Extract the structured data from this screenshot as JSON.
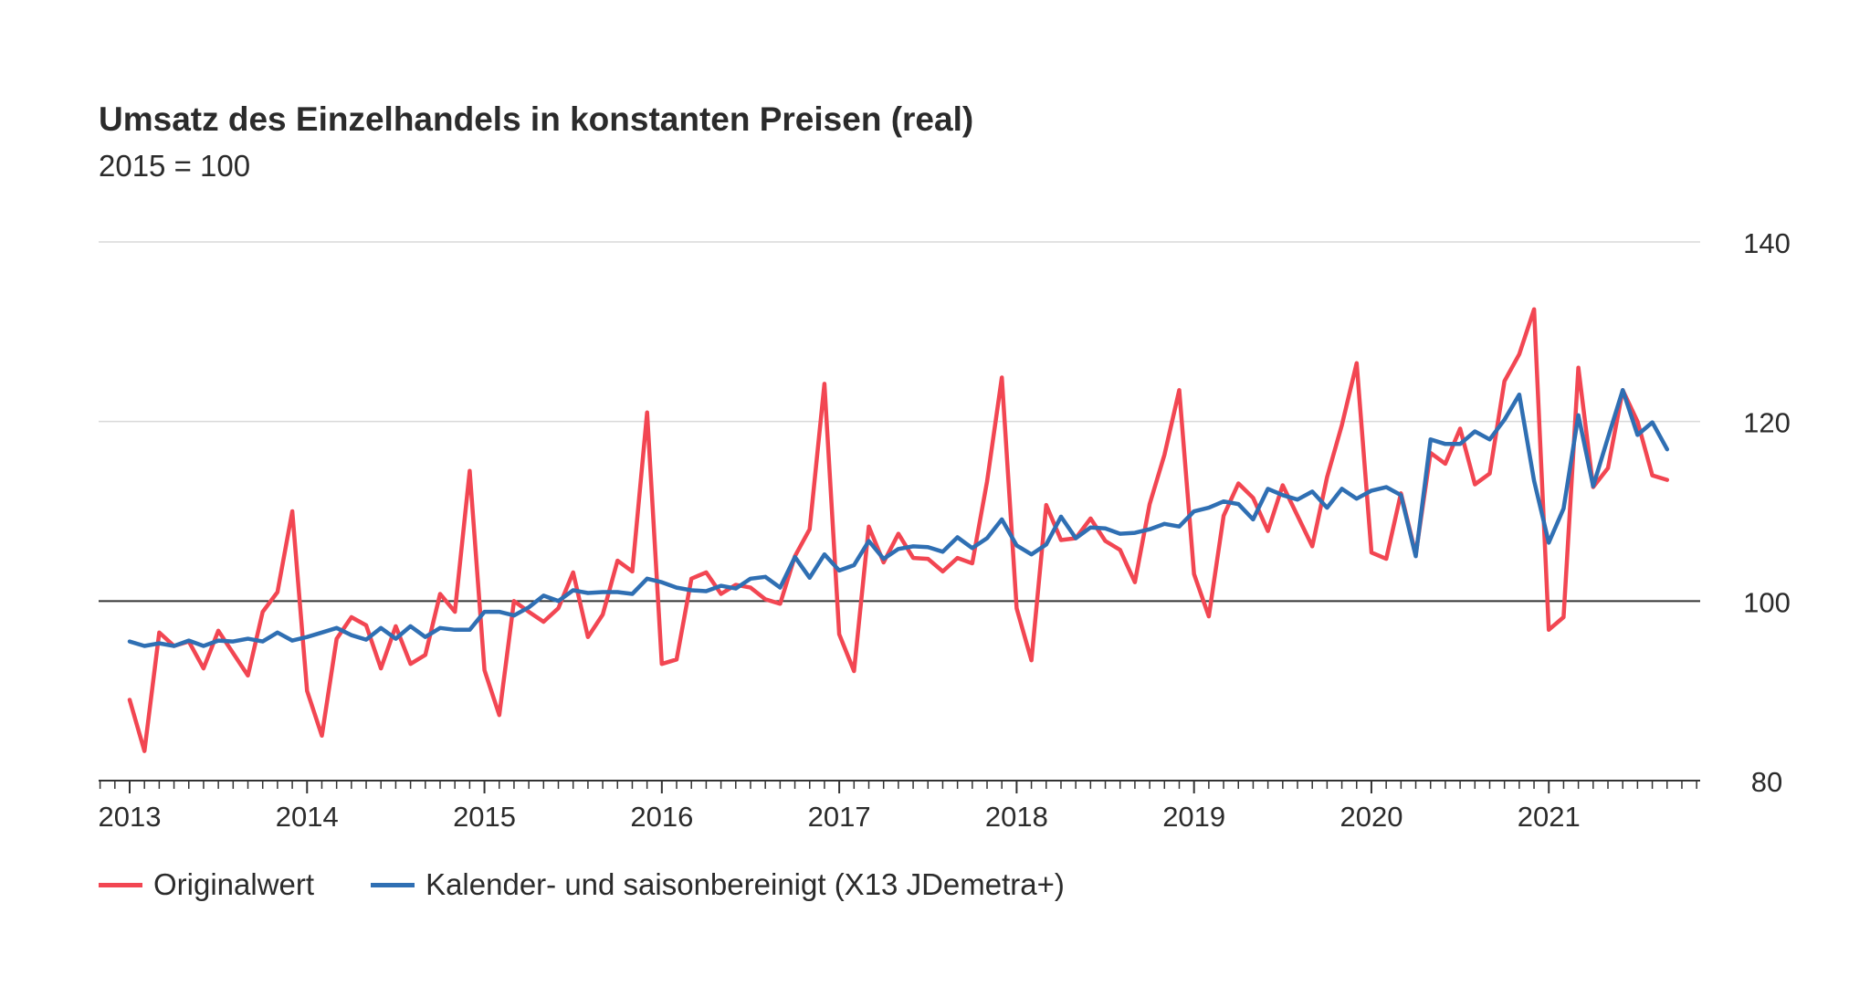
{
  "chart_data": {
    "type": "line",
    "title": "Umsatz des Einzelhandels in konstanten Preisen (real)",
    "subtitle": "2015 = 100",
    "ylim": [
      80,
      140
    ],
    "yticks": [
      "80",
      "100",
      "120",
      "140"
    ],
    "xticks": [
      "2013",
      "2014",
      "2015",
      "2016",
      "2017",
      "2018",
      "2019",
      "2020",
      "2021"
    ],
    "x_start": "2013-01",
    "x_end": "2021-09",
    "reference_line": 100,
    "grid": true,
    "legend_position": "bottom-left",
    "series": [
      {
        "name": "Originalwert",
        "color": "#f24652",
        "values": [
          89.0,
          83.3,
          96.5,
          95.0,
          95.5,
          92.5,
          96.7,
          94.2,
          91.7,
          98.8,
          101.0,
          110.0,
          90.0,
          85.0,
          95.8,
          98.2,
          97.3,
          92.5,
          97.2,
          93.0,
          94.0,
          100.8,
          98.8,
          114.5,
          92.3,
          87.3,
          100.0,
          98.8,
          97.7,
          99.2,
          103.2,
          96.0,
          98.5,
          104.5,
          103.3,
          121.0,
          93.0,
          93.5,
          102.5,
          103.2,
          100.8,
          101.8,
          101.5,
          100.2,
          99.7,
          105.0,
          108.0,
          124.2,
          96.3,
          92.2,
          108.3,
          104.3,
          107.5,
          104.8,
          104.7,
          103.3,
          104.8,
          104.2,
          113.3,
          124.9,
          99.2,
          93.4,
          110.7,
          106.8,
          107.0,
          109.2,
          106.7,
          105.7,
          102.1,
          110.8,
          116.3,
          123.5,
          103.0,
          98.3,
          109.5,
          113.1,
          111.5,
          107.8,
          112.9,
          109.5,
          106.1,
          113.8,
          119.6,
          126.5,
          105.4,
          104.7,
          112.0,
          105.2,
          116.5,
          115.3,
          119.2,
          113.0,
          114.2,
          124.5,
          127.5,
          132.5,
          96.8,
          98.2,
          126.0,
          112.7,
          114.8,
          123.5,
          120.0,
          114.0,
          113.5
        ]
      },
      {
        "name": "Kalender- und saisonbereinigt (X13 JDemetra+)",
        "color": "#2f6fb3",
        "values": [
          95.5,
          95.0,
          95.3,
          95.0,
          95.6,
          95.0,
          95.6,
          95.5,
          95.8,
          95.5,
          96.5,
          95.6,
          96.0,
          96.5,
          97.0,
          96.2,
          95.7,
          97.0,
          95.8,
          97.2,
          96.0,
          97.0,
          96.8,
          96.8,
          98.8,
          98.8,
          98.4,
          99.3,
          100.6,
          100.0,
          101.2,
          100.9,
          101.0,
          101.0,
          100.8,
          102.5,
          102.1,
          101.5,
          101.2,
          101.1,
          101.7,
          101.4,
          102.5,
          102.7,
          101.5,
          104.9,
          102.6,
          105.2,
          103.4,
          104.0,
          106.7,
          104.7,
          105.8,
          106.1,
          106.0,
          105.5,
          107.1,
          105.9,
          107.0,
          109.1,
          106.2,
          105.2,
          106.3,
          109.4,
          107.0,
          108.2,
          108.1,
          107.5,
          107.6,
          108.0,
          108.6,
          108.3,
          110.0,
          110.4,
          111.1,
          110.8,
          109.1,
          112.5,
          111.8,
          111.3,
          112.2,
          110.4,
          112.5,
          111.4,
          112.3,
          112.7,
          111.8,
          105.0,
          118.0,
          117.5,
          117.5,
          118.9,
          118.0,
          120.2,
          123.0,
          113.4,
          106.5,
          110.3,
          120.7,
          112.8,
          118.2,
          123.5,
          118.5,
          119.9,
          116.9
        ]
      }
    ]
  },
  "legend": {
    "items": [
      {
        "label": "Originalwert",
        "color": "#f24652"
      },
      {
        "label": "Kalender- und saisonbereinigt (X13 JDemetra+)",
        "color": "#2f6fb3"
      }
    ]
  }
}
